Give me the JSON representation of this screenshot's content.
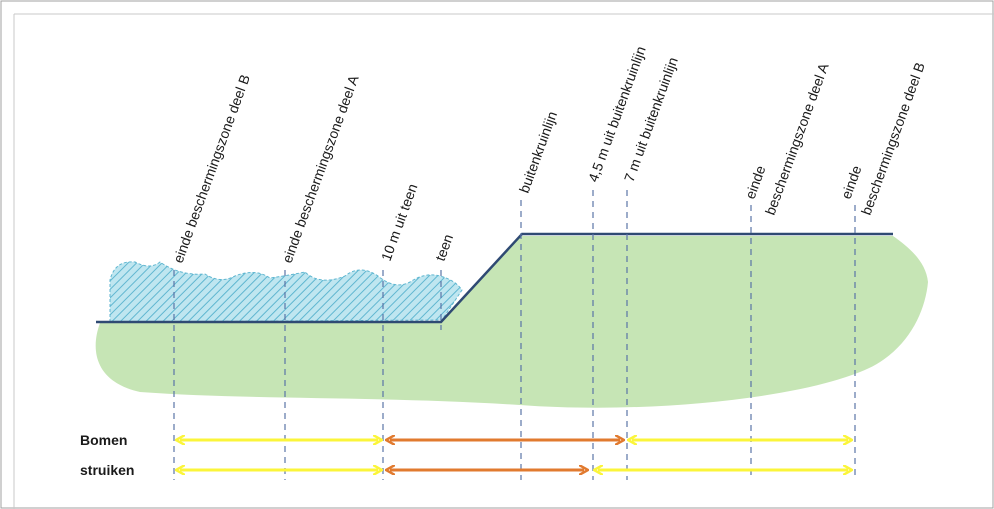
{
  "labels": {
    "einde_b_left": "einde beschermingszone deel B",
    "einde_a_left": "einde beschermingszone deel A",
    "tien_m": "10 m uit teen",
    "teen": "teen",
    "buitenkruinlijn": "buitenkruinlijn",
    "vier_half_m": "4,5 m uit buitenkruinlijn",
    "zeven_m": "7 m uit buitenkruinlijn",
    "einde_a_right_1": "einde",
    "einde_a_right_2": "beschermingszone deel A",
    "einde_b_right_1": "einde",
    "einde_b_right_2": "beschermingszone deel B"
  },
  "rows": {
    "bomen": "Bomen",
    "struiken": "struiken"
  },
  "colors": {
    "ground": "#c6e5b5",
    "water": "#9dd3e3",
    "profile_line": "#2f4a73",
    "dashed": "#5a74a6",
    "yellow_arrow": "#fbf53a",
    "orange_arrow": "#e17a2f",
    "frame": "#a0a0a0"
  },
  "icons": {
    "water_hatch": "hatched-water-icon"
  }
}
